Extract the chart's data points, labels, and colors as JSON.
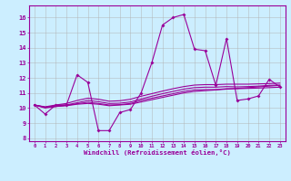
{
  "xlabel": "Windchill (Refroidissement éolien,°C)",
  "background_color": "#cceeff",
  "grid_color": "#b0b0b0",
  "line_color": "#990099",
  "x_ticks": [
    0,
    1,
    2,
    3,
    4,
    5,
    6,
    7,
    8,
    9,
    10,
    11,
    12,
    13,
    14,
    15,
    16,
    17,
    18,
    19,
    20,
    21,
    22,
    23
  ],
  "y_ticks": [
    8,
    9,
    10,
    11,
    12,
    13,
    14,
    15,
    16
  ],
  "ylim": [
    7.8,
    16.8
  ],
  "xlim": [
    -0.5,
    23.5
  ],
  "series": [
    [
      10.2,
      9.6,
      10.2,
      10.2,
      12.2,
      11.7,
      8.5,
      8.5,
      9.7,
      9.9,
      11.0,
      13.0,
      15.5,
      16.0,
      16.2,
      13.9,
      13.8,
      11.5,
      14.6,
      10.5,
      10.6,
      10.8,
      11.9,
      11.4
    ],
    [
      10.2,
      10.0,
      10.1,
      10.15,
      10.25,
      10.3,
      10.25,
      10.15,
      10.2,
      10.25,
      10.4,
      10.55,
      10.7,
      10.85,
      11.0,
      11.1,
      11.15,
      11.2,
      11.25,
      11.3,
      11.35,
      11.4,
      11.45,
      11.5
    ],
    [
      10.2,
      10.05,
      10.1,
      10.18,
      10.28,
      10.38,
      10.3,
      10.2,
      10.22,
      10.3,
      10.5,
      10.65,
      10.8,
      10.95,
      11.1,
      11.2,
      11.22,
      11.22,
      11.28,
      11.28,
      11.3,
      11.32,
      11.35,
      11.38
    ],
    [
      10.2,
      10.05,
      10.15,
      10.2,
      10.35,
      10.5,
      10.42,
      10.3,
      10.32,
      10.4,
      10.6,
      10.78,
      10.95,
      11.1,
      11.25,
      11.35,
      11.38,
      11.38,
      11.42,
      11.4,
      11.42,
      11.45,
      11.5,
      11.52
    ],
    [
      10.2,
      10.08,
      10.2,
      10.3,
      10.5,
      10.65,
      10.58,
      10.45,
      10.48,
      10.58,
      10.78,
      10.95,
      11.12,
      11.28,
      11.42,
      11.52,
      11.55,
      11.55,
      11.58,
      11.58,
      11.58,
      11.6,
      11.62,
      11.65
    ]
  ]
}
